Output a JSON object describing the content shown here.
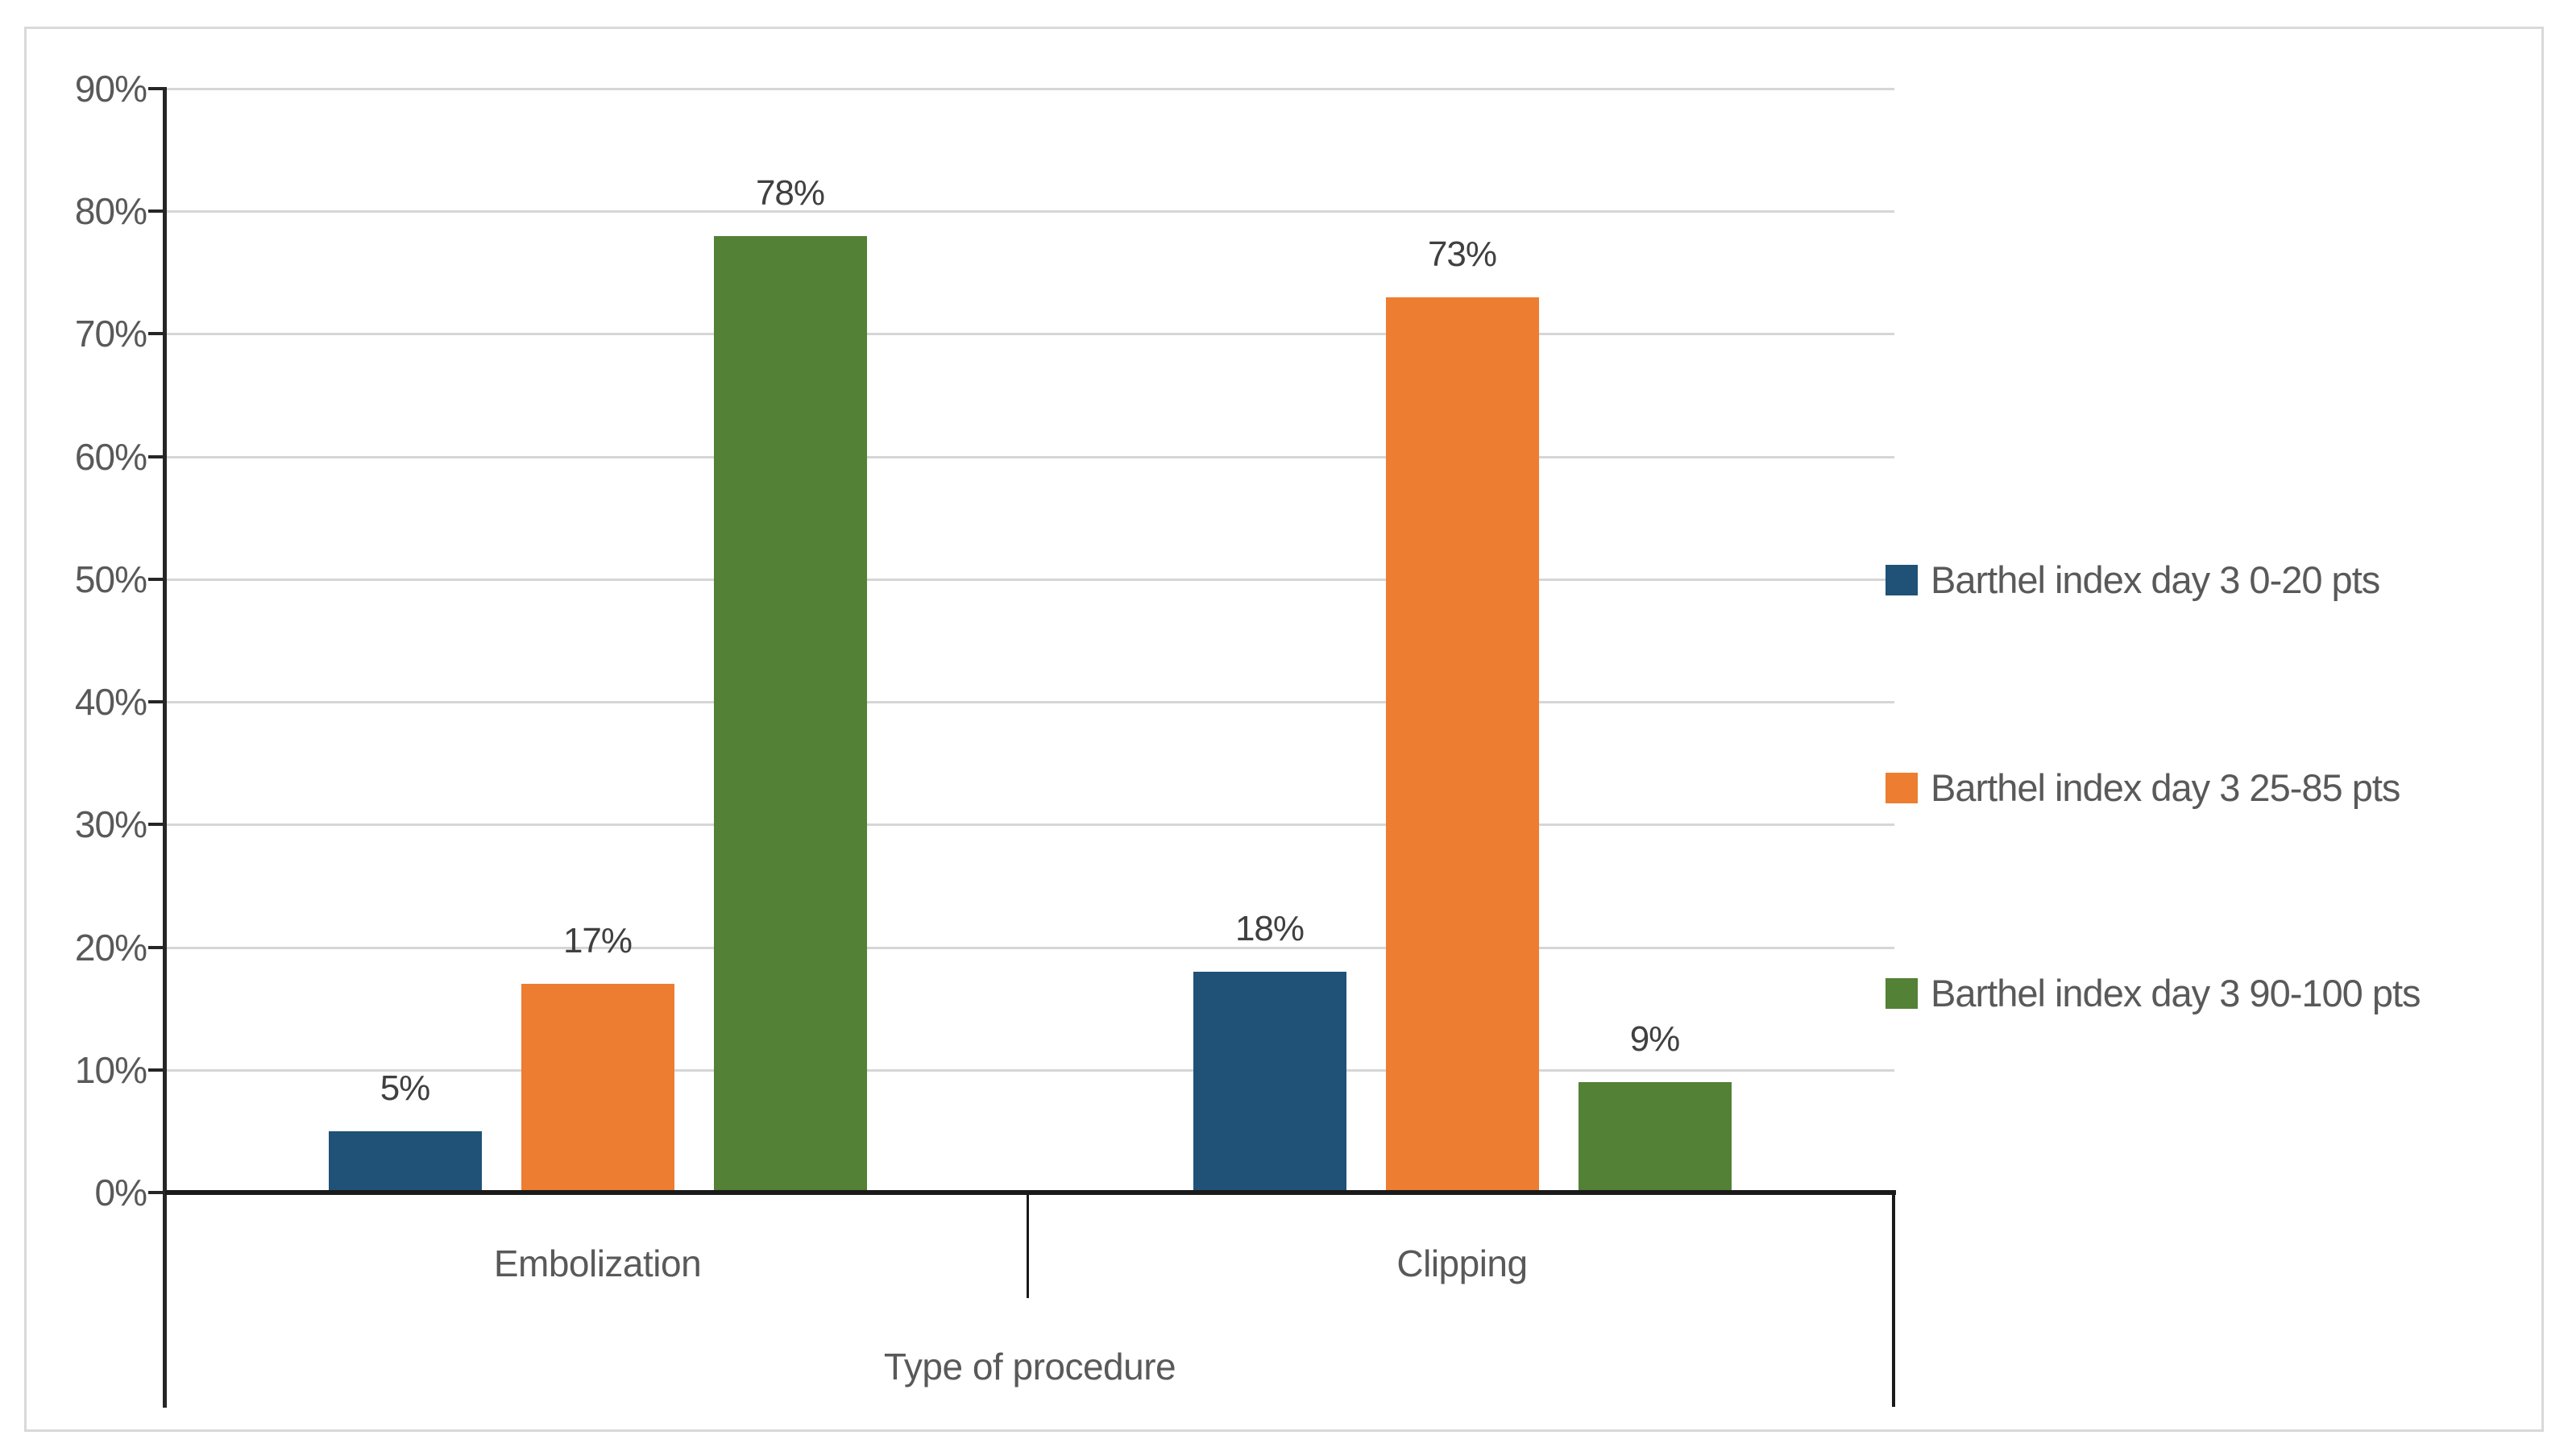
{
  "chart_data": {
    "type": "bar",
    "title": "",
    "categories": [
      "Embolization",
      "Clipping"
    ],
    "series": [
      {
        "name": "Barthel index day 3 0-20 pts",
        "color": "#1F5276",
        "values": [
          5,
          18
        ],
        "labels": [
          "5%",
          "18%"
        ]
      },
      {
        "name": "Barthel index day 3 25-85 pts",
        "color": "#ED7D31",
        "values": [
          17,
          73
        ],
        "labels": [
          "17%",
          "73%"
        ]
      },
      {
        "name": "Barthel index day 3 90-100 pts",
        "color": "#538135",
        "values": [
          78,
          9
        ],
        "labels": [
          "78%",
          "9%"
        ]
      }
    ],
    "xlabel": "Type of procedure",
    "ylabel": "",
    "ylim": [
      0,
      90
    ],
    "ytick_step": 10,
    "yticks": [
      "0%",
      "10%",
      "20%",
      "30%",
      "40%",
      "50%",
      "60%",
      "70%",
      "80%",
      "90%"
    ],
    "grid": true,
    "legend_position": "right"
  }
}
